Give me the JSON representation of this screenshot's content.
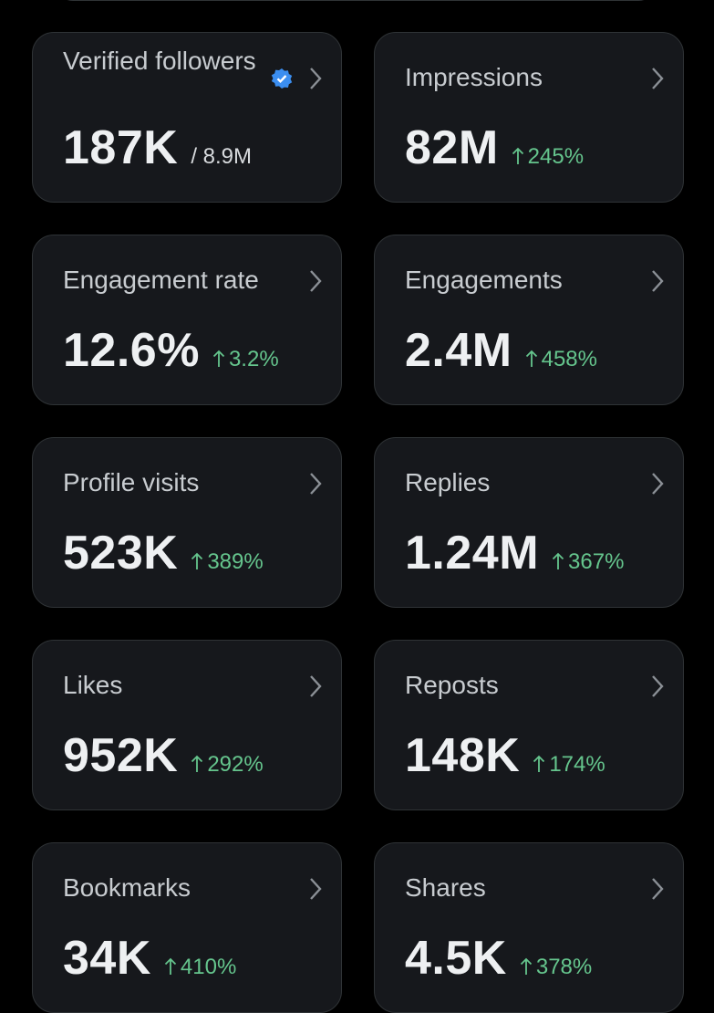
{
  "cards": [
    {
      "label": "Verified followers",
      "value": "187K",
      "total": "/ 8.9M"
    },
    {
      "label": "Impressions",
      "value": "82M",
      "change": "245%"
    },
    {
      "label": "Engagement rate",
      "value": "12.6%",
      "change": "3.2%"
    },
    {
      "label": "Engagements",
      "value": "2.4M",
      "change": "458%"
    },
    {
      "label": "Profile visits",
      "value": "523K",
      "change": "389%"
    },
    {
      "label": "Replies",
      "value": "1.24M",
      "change": "367%"
    },
    {
      "label": "Likes",
      "value": "952K",
      "change": "292%"
    },
    {
      "label": "Reposts",
      "value": "148K",
      "change": "174%"
    },
    {
      "label": "Bookmarks",
      "value": "34K",
      "change": "410%"
    },
    {
      "label": "Shares",
      "value": "4.5K",
      "change": "378%"
    }
  ]
}
